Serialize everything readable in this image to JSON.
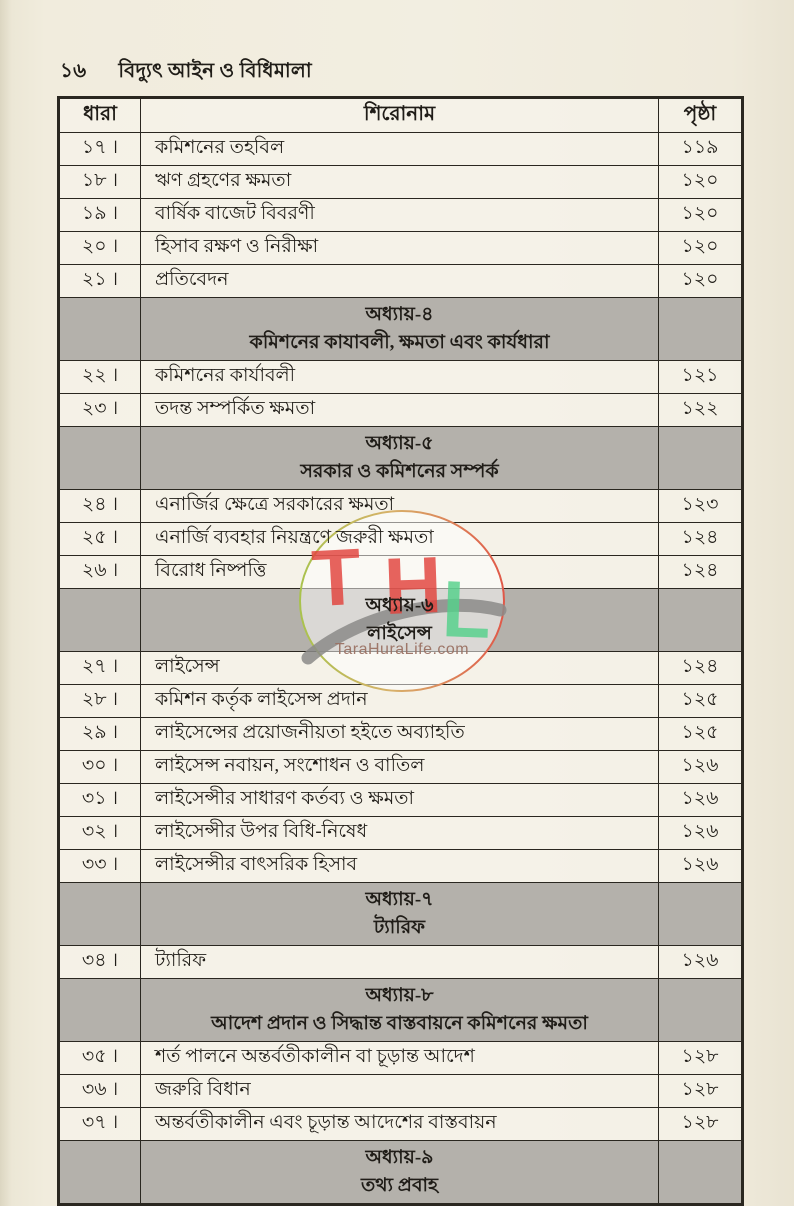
{
  "page": {
    "page_number": "১৬",
    "book_title": "বিদ্যুৎ আইন ও বিধিমালা"
  },
  "table": {
    "headers": {
      "serial": "ধারা",
      "title": "শিরোনাম",
      "page": "পৃষ্ঠা"
    },
    "rows": [
      {
        "type": "entry",
        "serial": "১৭ ।",
        "title": "কমিশনের তহবিল",
        "page": "১১৯"
      },
      {
        "type": "entry",
        "serial": "১৮ ।",
        "title": "ঋণ গ্রহণের ক্ষমতা",
        "page": "১২০"
      },
      {
        "type": "entry",
        "serial": "১৯ ।",
        "title": "বার্ষিক বাজেট বিবরণী",
        "page": "১২০"
      },
      {
        "type": "entry",
        "serial": "২০ ।",
        "title": "হিসাব রক্ষণ ও নিরীক্ষা",
        "page": "১২০"
      },
      {
        "type": "entry",
        "serial": "২১ ।",
        "title": "প্রতিবেদন",
        "page": "১২০"
      },
      {
        "type": "chapter",
        "line1": "অধ্যায়-৪",
        "line2": "কমিশনের কাযাবলী, ক্ষমতা এবং কার্যধারা"
      },
      {
        "type": "entry",
        "serial": "২২ ।",
        "title": "কমিশনের কার্যাবলী",
        "page": "১২১"
      },
      {
        "type": "entry",
        "serial": "২৩ ।",
        "title": "তদন্ত সম্পর্কিত ক্ষমতা",
        "page": "১২২"
      },
      {
        "type": "chapter",
        "line1": "অধ্যায়-৫",
        "line2": "সরকার ও কমিশনের সম্পর্ক"
      },
      {
        "type": "entry",
        "serial": "২৪ ।",
        "title": "এনার্জির ক্ষেত্রে সরকারের ক্ষমতা",
        "page": "১২৩"
      },
      {
        "type": "entry",
        "serial": "২৫ ।",
        "title": "এনার্জি ব্যবহার নিয়ন্ত্রণে জরুরী ক্ষমতা",
        "page": "১২৪"
      },
      {
        "type": "entry",
        "serial": "২৬ ।",
        "title": "বিরোধ নিষ্পত্তি",
        "page": "১২৪"
      },
      {
        "type": "chapter",
        "line1": "অধ্যায়-৬",
        "line2": "লাইসেন্স"
      },
      {
        "type": "entry",
        "serial": "২৭ ।",
        "title": "লাইসেন্স",
        "page": "১২৪"
      },
      {
        "type": "entry",
        "serial": "২৮ ।",
        "title": "কমিশন কর্তৃক লাইসেন্স প্রদান",
        "page": "১২৫"
      },
      {
        "type": "entry",
        "serial": "২৯ ।",
        "title": "লাইসেন্সের প্রয়োজনীয়তা হইতে অব্যাহতি",
        "page": "১২৫"
      },
      {
        "type": "entry",
        "serial": "৩০ ।",
        "title": "লাইসেন্স নবায়ন, সংশোধন ও বাতিল",
        "page": "১২৬"
      },
      {
        "type": "entry",
        "serial": "৩১ ।",
        "title": "লাইসেন্সীর সাধারণ কর্তব্য ও ক্ষমতা",
        "page": "১২৬"
      },
      {
        "type": "entry",
        "serial": "৩২ ।",
        "title": "লাইসেন্সীর উপর বিধি-নিষেধ",
        "page": "১২৬"
      },
      {
        "type": "entry",
        "serial": "৩৩ ।",
        "title": "লাইসেন্সীর বাৎসরিক হিসাব",
        "page": "১২৬"
      },
      {
        "type": "chapter",
        "line1": "অধ্যায়-৭",
        "line2": "ট্যারিফ"
      },
      {
        "type": "entry",
        "serial": "৩৪ ।",
        "title": "ট্যারিফ",
        "page": "১২৬"
      },
      {
        "type": "chapter",
        "line1": "অধ্যায়-৮",
        "line2": "আদেশ প্রদান ও সিদ্ধান্ত বাস্তবায়নে কমিশনের ক্ষমতা"
      },
      {
        "type": "entry",
        "serial": "৩৫ ।",
        "title": "শর্ত পালনে অন্তর্বতীকালীন বা চূড়ান্ত আদেশ",
        "page": "১২৮"
      },
      {
        "type": "entry",
        "serial": "৩৬ ।",
        "title": "জরুরি বিধান",
        "page": "১২৮"
      },
      {
        "type": "entry",
        "serial": "৩৭ ।",
        "title": "অন্তর্বতীকালীন এবং চূড়ান্ত আদেশের বাস্তবায়ন",
        "page": "১২৮"
      },
      {
        "type": "chapter",
        "line1": "অধ্যায়-৯",
        "line2": "তথ্য প্রবাহ"
      }
    ]
  },
  "watermark": {
    "letters": [
      "T",
      "H",
      "L"
    ],
    "site": "TaraHuraLife.com"
  },
  "colors": {
    "page_background": "#f1ecdd",
    "chapter_band": "#b4b1ab",
    "table_border": "#2a2720",
    "watermark_red": "#e2433c",
    "watermark_green": "#55d18b",
    "watermark_gray": "#8b8b88",
    "watermark_site_text": "#9b7264"
  }
}
